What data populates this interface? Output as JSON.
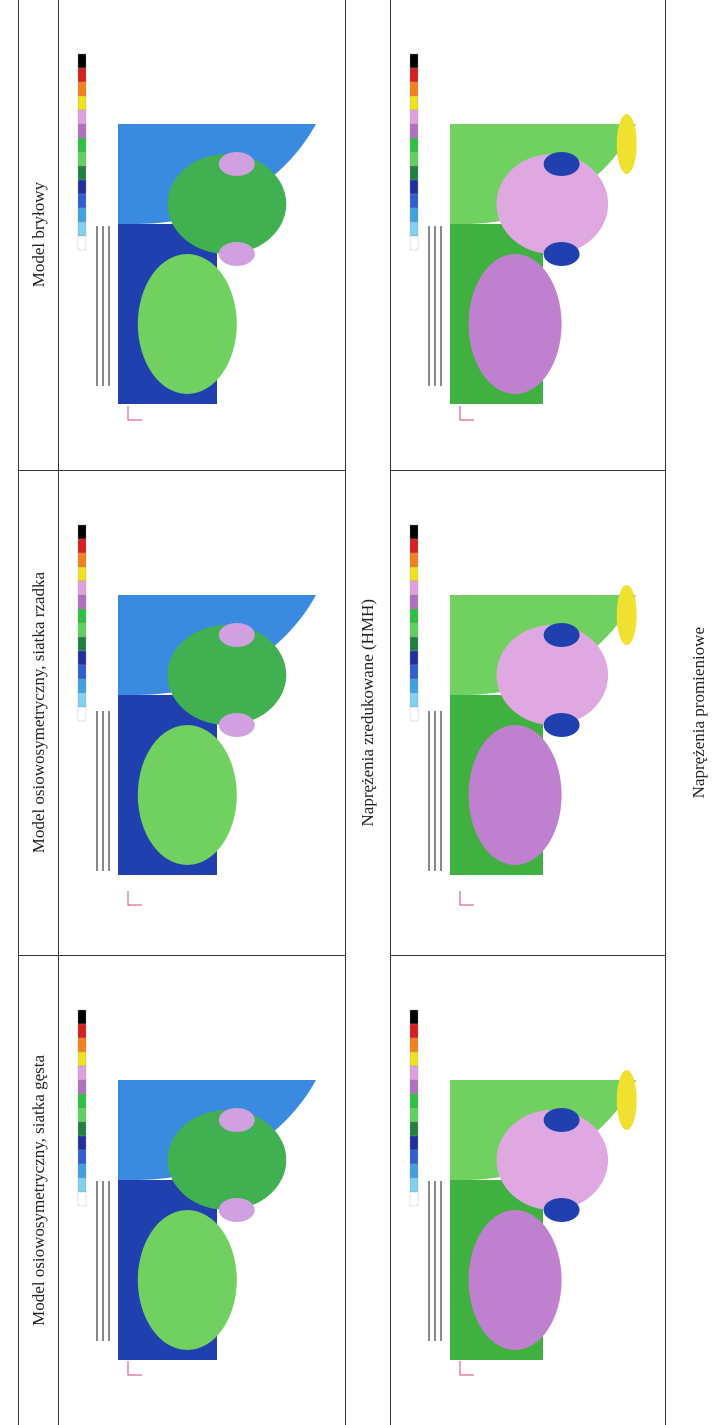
{
  "table": {
    "columns": [
      "Model bryłowy",
      "Model osiowosymetryczny, siatka rzadka",
      "Model osiowosymetryczny, siatka gęsta"
    ],
    "rows": [
      "Naprężenia zredukowane (HMH)",
      "Naprężenia promieniowe"
    ]
  }
}
